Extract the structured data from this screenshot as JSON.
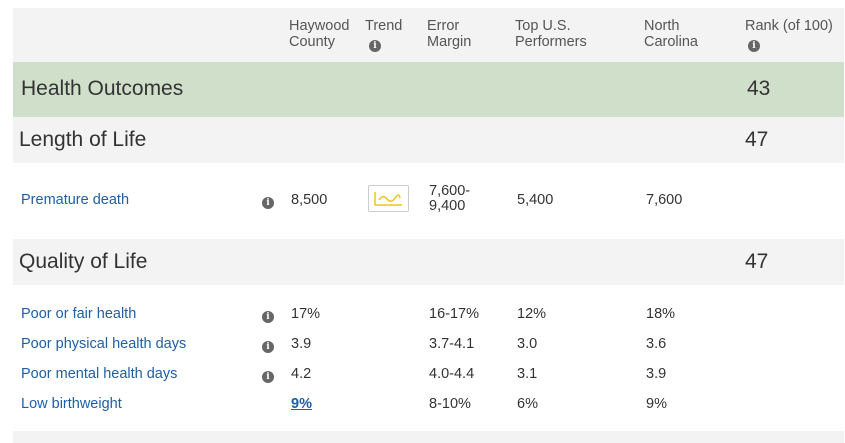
{
  "header": {
    "county": [
      "Haywood",
      "County"
    ],
    "trend": "Trend",
    "error": [
      "Error",
      "Margin"
    ],
    "top": [
      "Top U.S.",
      "Performers"
    ],
    "state": [
      "North",
      "Carolina"
    ],
    "rank": "Rank (of 100)"
  },
  "outcomes": {
    "title": "Health Outcomes",
    "rank": "43"
  },
  "length": {
    "title": "Length of Life",
    "rank": "47",
    "rows": [
      {
        "label": "Premature death",
        "value": "8,500",
        "error": [
          "7,600-",
          "9,400"
        ],
        "top": "5,400",
        "state": "7,600"
      }
    ]
  },
  "quality": {
    "title": "Quality of Life",
    "rank": "47",
    "rows": [
      {
        "label": "Poor or fair health",
        "value": "17%",
        "error": "16-17%",
        "top": "12%",
        "state": "18%"
      },
      {
        "label": "Poor physical health days",
        "value": "3.9",
        "error": "3.7-4.1",
        "top": "3.0",
        "state": "3.6"
      },
      {
        "label": "Poor mental health days",
        "value": "4.2",
        "error": "4.0-4.4",
        "top": "3.1",
        "state": "3.9"
      },
      {
        "label": "Low birthweight",
        "value": "9%",
        "error": "8-10%",
        "top": "6%",
        "state": "9%"
      }
    ]
  },
  "colors": {
    "outcomes_band": "#d0dfca",
    "section_band": "#f3f3f3",
    "link": "#1e5fa5",
    "trend_line": "#f0c419"
  }
}
